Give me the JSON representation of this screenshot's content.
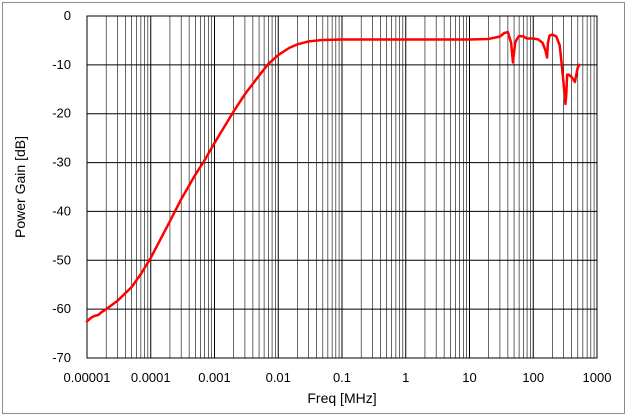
{
  "chart_data": {
    "type": "line",
    "title": "",
    "xlabel": "Freq [MHz]",
    "ylabel": "Power Gain [dB]",
    "x_scale": "log",
    "xlim": [
      1e-05,
      1000
    ],
    "ylim": [
      -70,
      0
    ],
    "x_tick_labels": [
      "0.00001",
      "0.0001",
      "0.001",
      "0.01",
      "0.1",
      "1",
      "10",
      "100",
      "1000"
    ],
    "y_tick_labels": [
      "0",
      "-10",
      "-20",
      "-30",
      "-40",
      "-50",
      "-60",
      "-70"
    ],
    "grid": true,
    "legend": "none",
    "series": [
      {
        "color": "#ff0000",
        "x": [
          1e-05,
          1.15e-05,
          1.3e-05,
          1.5e-05,
          1.7e-05,
          2e-05,
          3e-05,
          5e-05,
          7e-05,
          0.0001,
          0.0002,
          0.0003,
          0.0005,
          0.0007,
          0.001,
          0.002,
          0.003,
          0.005,
          0.007,
          0.01,
          0.015,
          0.02,
          0.03,
          0.05,
          0.1,
          0.3,
          1,
          3,
          10,
          20,
          30,
          35,
          40,
          45,
          48,
          52,
          55,
          60,
          70,
          80,
          100,
          120,
          140,
          155,
          165,
          170,
          180,
          200,
          230,
          260,
          280,
          300,
          320,
          330,
          340,
          360,
          400,
          450,
          500,
          530
        ],
        "y": [
          -62.5,
          -61.8,
          -61.4,
          -61.2,
          -60.6,
          -60,
          -58.3,
          -55.5,
          -52.8,
          -49.5,
          -42,
          -37.5,
          -32.5,
          -29.5,
          -26,
          -19.5,
          -16,
          -12.2,
          -9.8,
          -8,
          -6.5,
          -5.8,
          -5.2,
          -4.9,
          -4.8,
          -4.8,
          -4.8,
          -4.8,
          -4.8,
          -4.7,
          -4.2,
          -3.5,
          -3.3,
          -5.5,
          -9.5,
          -5.5,
          -4.8,
          -4.1,
          -4.2,
          -4.6,
          -4.6,
          -4.8,
          -5.5,
          -7,
          -8.5,
          -5.5,
          -4,
          -3.8,
          -4.2,
          -6,
          -10,
          -14,
          -18,
          -16,
          -12,
          -12,
          -12.5,
          -13.5,
          -10.5,
          -10
        ]
      }
    ]
  }
}
